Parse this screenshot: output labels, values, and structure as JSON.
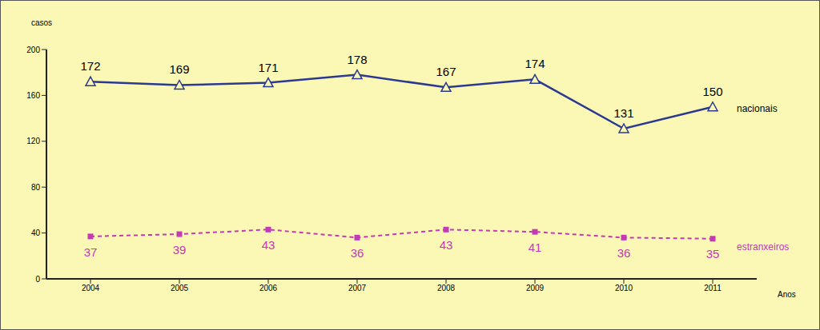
{
  "chart_data": {
    "type": "line",
    "ylabel": "casos",
    "xlabel": "Anos",
    "categories": [
      "2004",
      "2005",
      "2006",
      "2007",
      "2008",
      "2009",
      "2010",
      "2011"
    ],
    "series": [
      {
        "name": "nacionais",
        "color": "#2b3990",
        "marker": "triangle",
        "line_style": "solid",
        "values": [
          172,
          169,
          171,
          178,
          167,
          174,
          131,
          150
        ]
      },
      {
        "name": "estranxeiros",
        "color": "#c23bb5",
        "marker": "square",
        "line_style": "dashed",
        "values": [
          37,
          39,
          43,
          36,
          43,
          41,
          36,
          35
        ]
      }
    ],
    "ylim": [
      0,
      200
    ],
    "yticks": [
      0,
      40,
      80,
      120,
      160,
      200
    ],
    "data_labels": true
  }
}
